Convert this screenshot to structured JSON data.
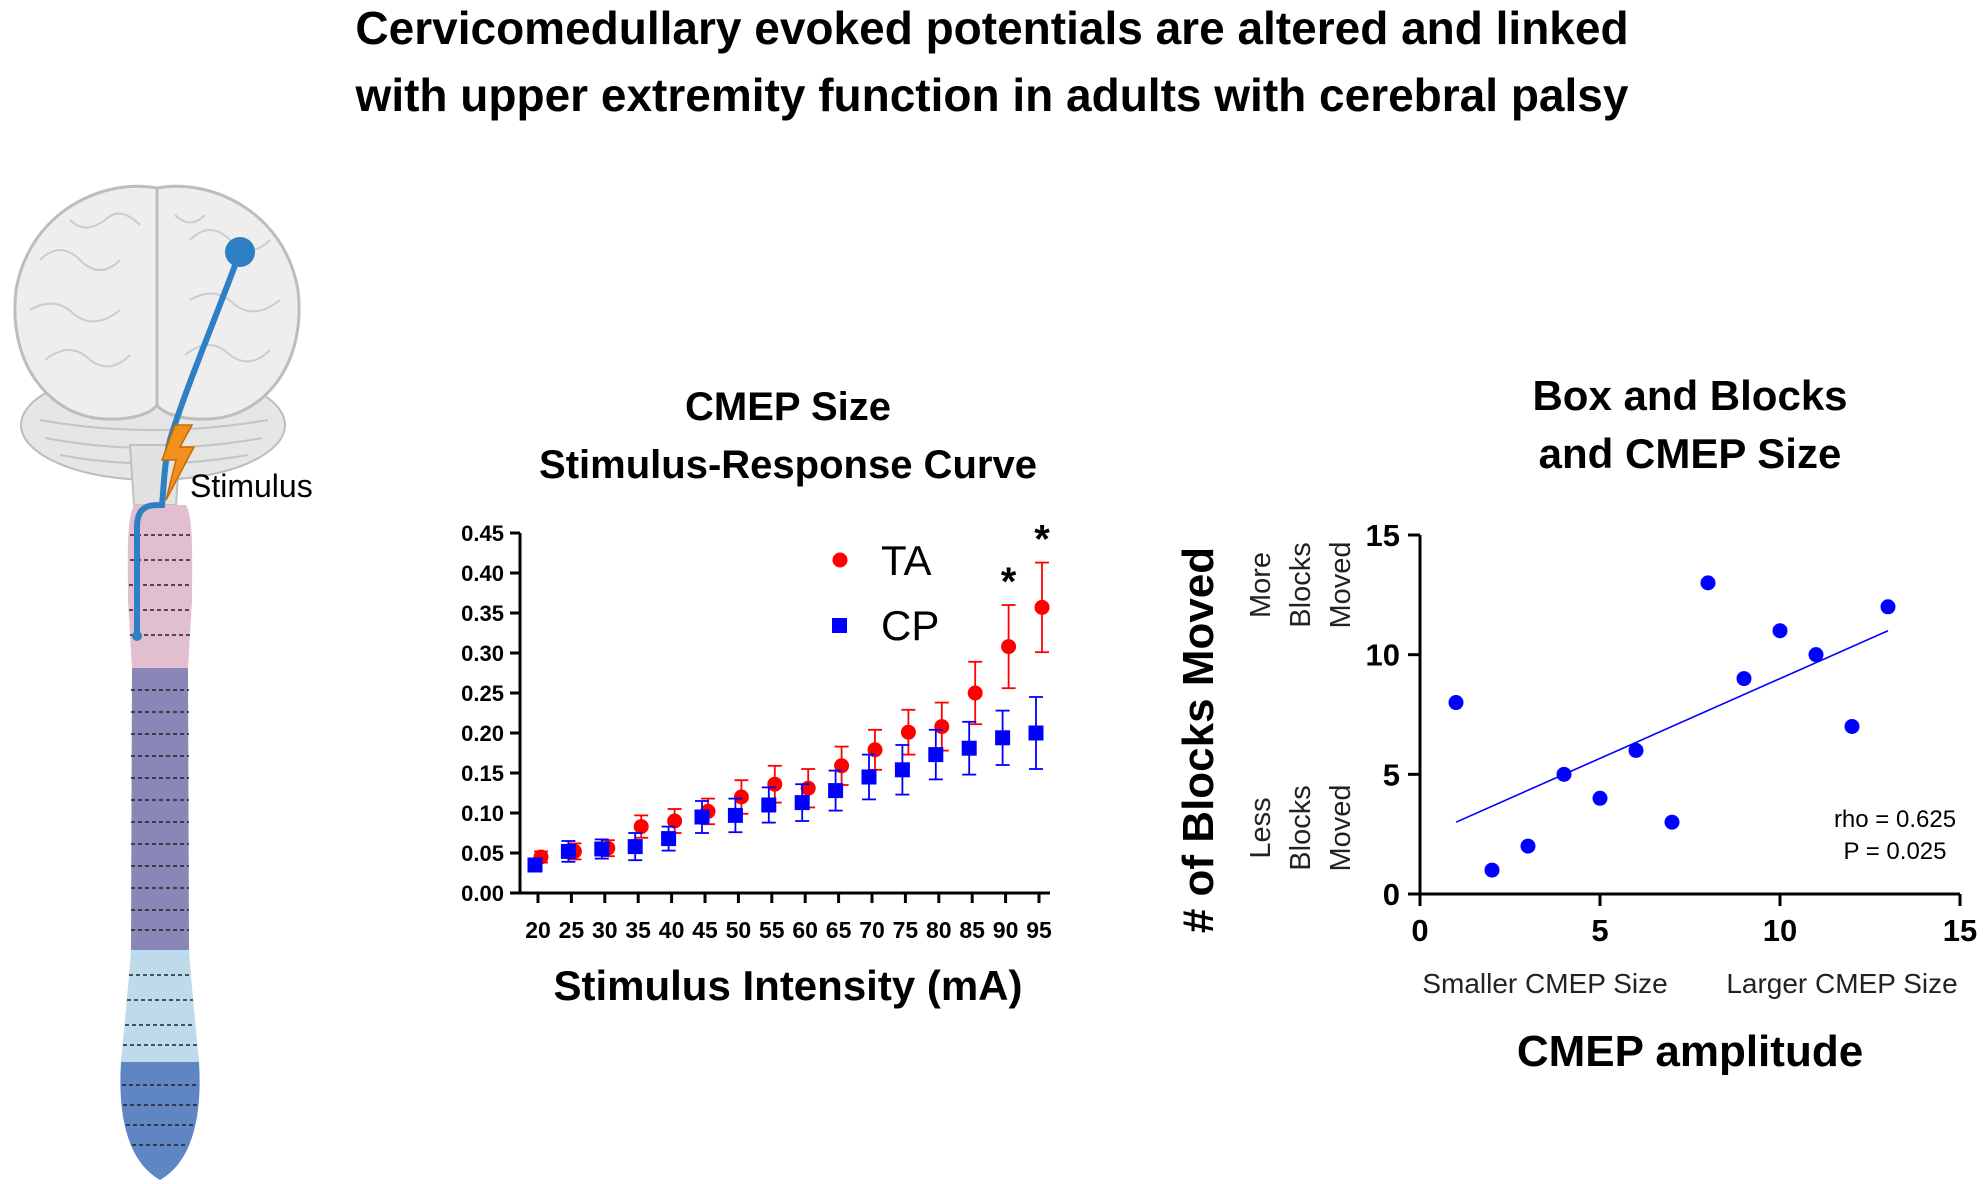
{
  "page": {
    "title_line1": "Cervicomedullary evoked potentials are altered and linked",
    "title_line2": "with upper extremity function in adults with cerebral palsy"
  },
  "illustration": {
    "stimulus_label": "Stimulus",
    "colors": {
      "pathway": "#2f7fc4",
      "bolt": "#f2901e",
      "cervical": "#e2bfd0",
      "thoracic": "#8a86b7",
      "lumbar": "#bedbeb",
      "sacral": "#5f86c2"
    }
  },
  "colors": {
    "ta": "#ff0000",
    "cp": "#0000ff",
    "fit": "#0000ff"
  },
  "chart_data": [
    {
      "type": "scatter",
      "title": "CMEP Size\nStimulus-Response Curve",
      "title_lines": [
        "CMEP Size",
        "Stimulus-Response Curve"
      ],
      "xlabel": "Stimulus Intensity (mA)",
      "ylabel": "",
      "categories": [
        "20",
        "25",
        "30",
        "35",
        "40",
        "45",
        "50",
        "55",
        "60",
        "65",
        "70",
        "75",
        "80",
        "85",
        "90",
        "95"
      ],
      "ylim": [
        0,
        0.45
      ],
      "yticks": [
        "0.00",
        "0.05",
        "0.10",
        "0.15",
        "0.20",
        "0.25",
        "0.30",
        "0.35",
        "0.40",
        "0.45"
      ],
      "legend_position": "top-right",
      "series": [
        {
          "name": "TA",
          "marker": "circle",
          "values": [
            0.045,
            0.052,
            0.056,
            0.083,
            0.09,
            0.102,
            0.12,
            0.136,
            0.131,
            0.159,
            0.179,
            0.201,
            0.208,
            0.25,
            0.308,
            0.357
          ],
          "errors": [
            0.007,
            0.01,
            0.01,
            0.014,
            0.015,
            0.016,
            0.021,
            0.023,
            0.024,
            0.024,
            0.025,
            0.028,
            0.03,
            0.039,
            0.052,
            0.056
          ]
        },
        {
          "name": "CP",
          "marker": "square",
          "values": [
            0.035,
            0.052,
            0.055,
            0.058,
            0.068,
            0.095,
            0.097,
            0.11,
            0.113,
            0.128,
            0.145,
            0.154,
            0.173,
            0.181,
            0.194,
            0.2
          ],
          "errors": [
            0.005,
            0.013,
            0.012,
            0.017,
            0.015,
            0.02,
            0.021,
            0.022,
            0.023,
            0.025,
            0.028,
            0.031,
            0.031,
            0.033,
            0.034,
            0.045
          ]
        }
      ],
      "annotations": [
        {
          "category": "90",
          "text": "*"
        },
        {
          "category": "95",
          "text": "*"
        }
      ]
    },
    {
      "type": "scatter",
      "title": "Box and Blocks\nand CMEP Size",
      "title_lines": [
        "Box and Blocks",
        "and CMEP Size"
      ],
      "xlabel": "CMEP amplitude",
      "ylabel": "# of Blocks Moved",
      "xlim": [
        0,
        15
      ],
      "ylim": [
        0,
        15
      ],
      "xticks": [
        "0",
        "5",
        "10",
        "15"
      ],
      "yticks": [
        "0",
        "5",
        "10",
        "15"
      ],
      "x_sublabels": [
        "Smaller CMEP Size",
        "Larger CMEP Size"
      ],
      "y_sublabels": {
        "upper": [
          "More",
          "Blocks",
          "Moved"
        ],
        "lower": [
          "Less",
          "Blocks",
          "Moved"
        ]
      },
      "points": [
        {
          "x": 1,
          "y": 8
        },
        {
          "x": 2,
          "y": 1
        },
        {
          "x": 3,
          "y": 2
        },
        {
          "x": 4,
          "y": 5
        },
        {
          "x": 5,
          "y": 4
        },
        {
          "x": 6,
          "y": 6
        },
        {
          "x": 7,
          "y": 3
        },
        {
          "x": 8,
          "y": 13
        },
        {
          "x": 9,
          "y": 9
        },
        {
          "x": 10,
          "y": 11
        },
        {
          "x": 11,
          "y": 10
        },
        {
          "x": 12,
          "y": 7
        },
        {
          "x": 13,
          "y": 12
        }
      ],
      "fit_line": [
        {
          "x": 1,
          "y": 3
        },
        {
          "x": 13,
          "y": 11
        }
      ],
      "stats": [
        "rho = 0.625",
        "P = 0.025"
      ]
    }
  ]
}
